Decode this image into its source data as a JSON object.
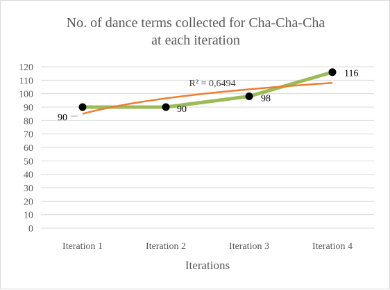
{
  "chart_data": {
    "type": "line",
    "title_lines": [
      "No. of dance terms collected for Cha-Cha-Cha",
      "at each iteration"
    ],
    "xlabel": "Iterations",
    "ylabel": "",
    "categories": [
      "Iteration 1",
      "Iteration 2",
      "Iteration 3",
      "Iteration 4"
    ],
    "ylim": [
      0,
      120
    ],
    "yticks": [
      0,
      10,
      20,
      30,
      40,
      50,
      60,
      70,
      80,
      90,
      100,
      110,
      120
    ],
    "grid": true,
    "legend": "none",
    "series": [
      {
        "values": [
          90,
          90,
          98,
          116
        ],
        "data_labels": [
          "90",
          "90",
          "98",
          "116"
        ],
        "line_color": "#9bbb59",
        "marker_color": "#000000"
      }
    ],
    "trendline": {
      "type": "logarithmic",
      "color": "#ed7d31",
      "r_squared_label": "R² = 0,6494",
      "start_value": 85,
      "end_value": 108
    }
  }
}
